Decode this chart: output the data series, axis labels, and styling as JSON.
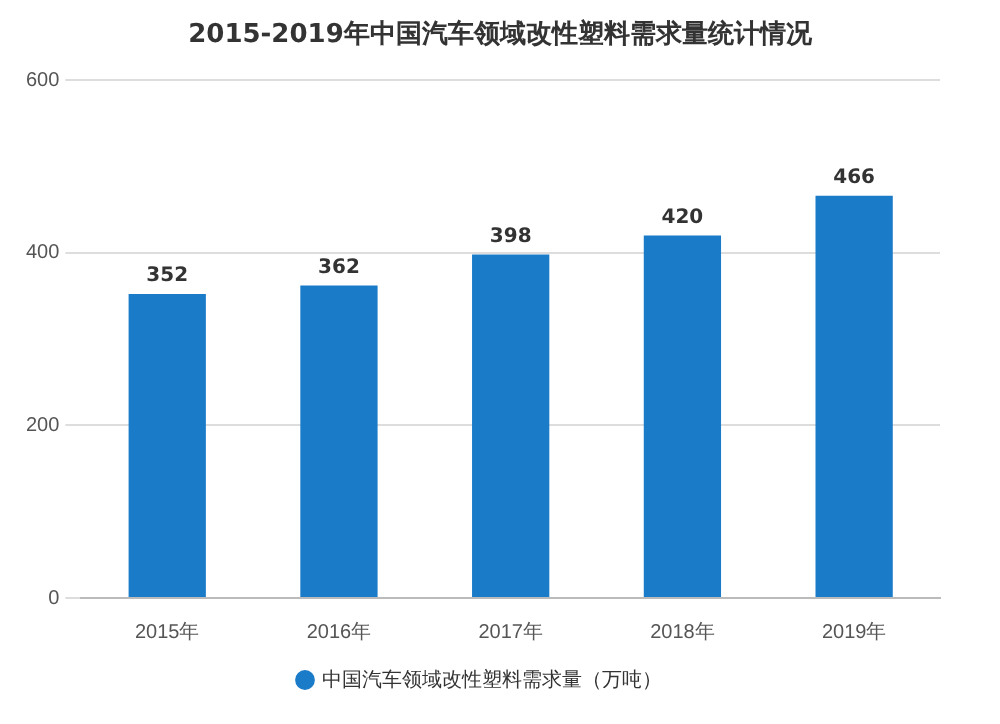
{
  "chart_data": {
    "type": "bar",
    "title": "2015-2019年中国汽车领域改性塑料需求量统计情况",
    "categories": [
      "2015年",
      "2016年",
      "2017年",
      "2018年",
      "2019年"
    ],
    "series": [
      {
        "name": "中国汽车领域改性塑料需求量（万吨）",
        "color": "#1a7bc9",
        "values": [
          352,
          362,
          398,
          420,
          466
        ]
      }
    ],
    "ylim": [
      0,
      600
    ],
    "yticks": [
      0,
      200,
      400,
      600
    ],
    "grid": "y",
    "legend": "bottom",
    "data_labels": true
  }
}
